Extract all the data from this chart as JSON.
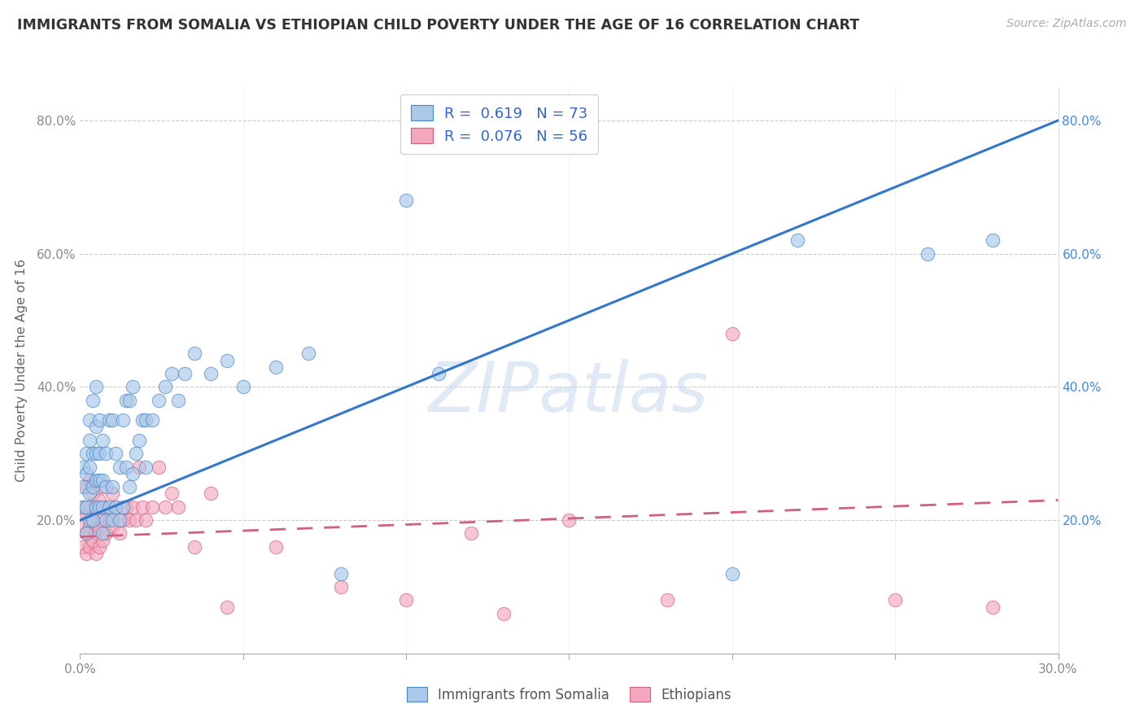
{
  "title": "IMMIGRANTS FROM SOMALIA VS ETHIOPIAN CHILD POVERTY UNDER THE AGE OF 16 CORRELATION CHART",
  "source": "Source: ZipAtlas.com",
  "ylabel": "Child Poverty Under the Age of 16",
  "xlim": [
    0.0,
    0.3
  ],
  "ylim": [
    0.0,
    0.85
  ],
  "ytick_vals": [
    0.0,
    0.2,
    0.4,
    0.6,
    0.8
  ],
  "xtick_vals": [
    0.0,
    0.05,
    0.1,
    0.15,
    0.2,
    0.25,
    0.3
  ],
  "xtick_labels": [
    "0.0%",
    "",
    "",
    "",
    "",
    "",
    "30.0%"
  ],
  "legend_top_label1": "R =  0.619   N = 73",
  "legend_top_label2": "R =  0.076   N = 56",
  "legend_bottom_label1": "Immigrants from Somalia",
  "legend_bottom_label2": "Ethiopians",
  "color_somalia_fill": "#aac8e8",
  "color_somalia_edge": "#4488cc",
  "color_somalia_line": "#3377cc",
  "color_ethiopian_fill": "#f4a8be",
  "color_ethiopian_edge": "#d06080",
  "color_ethiopian_line": "#d06080",
  "watermark": "ZIPatlas",
  "somalia_x": [
    0.001,
    0.001,
    0.001,
    0.002,
    0.002,
    0.002,
    0.002,
    0.003,
    0.003,
    0.003,
    0.003,
    0.003,
    0.004,
    0.004,
    0.004,
    0.004,
    0.005,
    0.005,
    0.005,
    0.005,
    0.005,
    0.006,
    0.006,
    0.006,
    0.006,
    0.007,
    0.007,
    0.007,
    0.007,
    0.008,
    0.008,
    0.008,
    0.009,
    0.009,
    0.01,
    0.01,
    0.01,
    0.011,
    0.011,
    0.012,
    0.012,
    0.013,
    0.013,
    0.014,
    0.014,
    0.015,
    0.015,
    0.016,
    0.016,
    0.017,
    0.018,
    0.019,
    0.02,
    0.02,
    0.022,
    0.024,
    0.026,
    0.028,
    0.03,
    0.032,
    0.035,
    0.04,
    0.045,
    0.05,
    0.06,
    0.07,
    0.08,
    0.1,
    0.11,
    0.2,
    0.22,
    0.26,
    0.28
  ],
  "somalia_y": [
    0.22,
    0.25,
    0.28,
    0.18,
    0.22,
    0.27,
    0.3,
    0.2,
    0.24,
    0.28,
    0.32,
    0.35,
    0.2,
    0.25,
    0.3,
    0.38,
    0.22,
    0.26,
    0.3,
    0.34,
    0.4,
    0.22,
    0.26,
    0.3,
    0.35,
    0.18,
    0.22,
    0.26,
    0.32,
    0.2,
    0.25,
    0.3,
    0.22,
    0.35,
    0.2,
    0.25,
    0.35,
    0.22,
    0.3,
    0.2,
    0.28,
    0.22,
    0.35,
    0.28,
    0.38,
    0.25,
    0.38,
    0.27,
    0.4,
    0.3,
    0.32,
    0.35,
    0.28,
    0.35,
    0.35,
    0.38,
    0.4,
    0.42,
    0.38,
    0.42,
    0.45,
    0.42,
    0.44,
    0.4,
    0.43,
    0.45,
    0.12,
    0.68,
    0.42,
    0.12,
    0.62,
    0.6,
    0.62
  ],
  "ethiopian_x": [
    0.001,
    0.001,
    0.001,
    0.002,
    0.002,
    0.002,
    0.002,
    0.003,
    0.003,
    0.003,
    0.003,
    0.004,
    0.004,
    0.004,
    0.005,
    0.005,
    0.005,
    0.006,
    0.006,
    0.006,
    0.007,
    0.007,
    0.007,
    0.008,
    0.008,
    0.009,
    0.01,
    0.01,
    0.011,
    0.012,
    0.013,
    0.014,
    0.015,
    0.016,
    0.017,
    0.018,
    0.019,
    0.02,
    0.022,
    0.024,
    0.026,
    0.028,
    0.03,
    0.035,
    0.04,
    0.045,
    0.06,
    0.08,
    0.1,
    0.12,
    0.13,
    0.15,
    0.18,
    0.2,
    0.25,
    0.28
  ],
  "ethiopian_y": [
    0.16,
    0.19,
    0.22,
    0.15,
    0.18,
    0.21,
    0.25,
    0.16,
    0.19,
    0.22,
    0.26,
    0.17,
    0.2,
    0.24,
    0.15,
    0.18,
    0.22,
    0.16,
    0.19,
    0.23,
    0.17,
    0.2,
    0.25,
    0.18,
    0.22,
    0.2,
    0.19,
    0.24,
    0.22,
    0.18,
    0.2,
    0.22,
    0.2,
    0.22,
    0.2,
    0.28,
    0.22,
    0.2,
    0.22,
    0.28,
    0.22,
    0.24,
    0.22,
    0.16,
    0.24,
    0.07,
    0.16,
    0.1,
    0.08,
    0.18,
    0.06,
    0.2,
    0.08,
    0.48,
    0.08,
    0.07
  ],
  "somalia_line_x0": 0.0,
  "somalia_line_y0": 0.2,
  "somalia_line_x1": 0.3,
  "somalia_line_y1": 0.8,
  "ethiopian_line_x0": 0.0,
  "ethiopian_line_y0": 0.175,
  "ethiopian_line_x1": 0.3,
  "ethiopian_line_y1": 0.23
}
